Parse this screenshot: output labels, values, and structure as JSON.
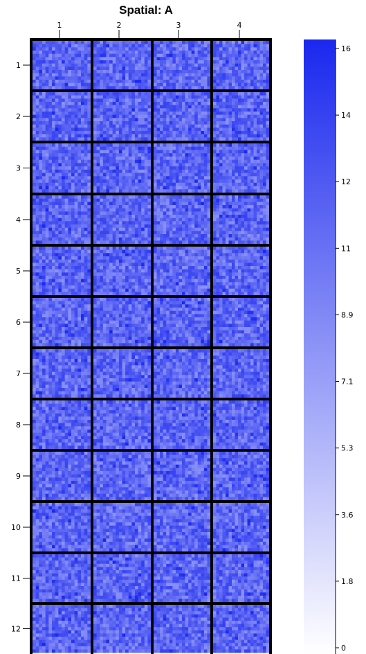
{
  "chart_data": {
    "type": "heatmap",
    "title": "Spatial: A",
    "xlabel": "",
    "ylabel": "",
    "columns": [
      "1",
      "2",
      "3",
      "4"
    ],
    "rows": [
      "1",
      "2",
      "3",
      "4",
      "5",
      "6",
      "7",
      "8",
      "9",
      "10",
      "11",
      "12"
    ],
    "block_grid": {
      "cols_per_block": 18,
      "rows_per_block": 15
    },
    "value_range": [
      0,
      16
    ],
    "typical_range": [
      8,
      14
    ],
    "colorbar": {
      "min": 0,
      "max": 16,
      "tick_labels": [
        "16",
        "14",
        "12",
        "11",
        "8.9",
        "7.1",
        "5.3",
        "3.6",
        "1.8",
        "0"
      ],
      "color_low": "#ffffff",
      "color_high": "#1a28ee"
    },
    "block_border_color": "#000000"
  }
}
